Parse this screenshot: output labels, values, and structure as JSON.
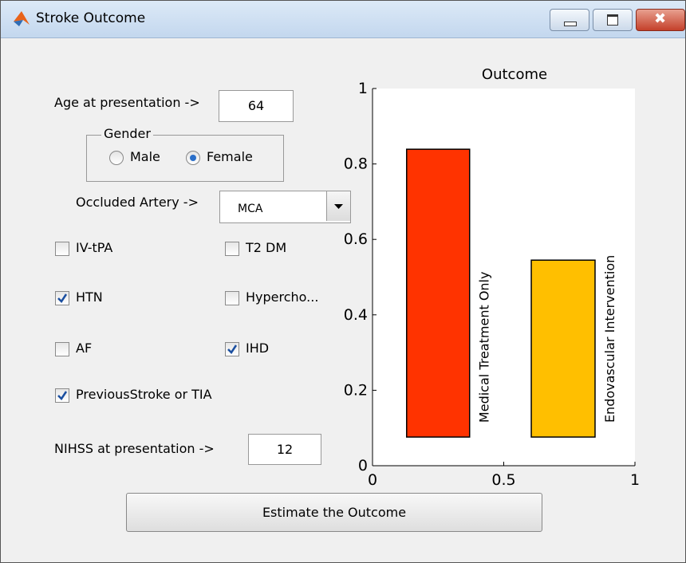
{
  "window": {
    "title": "Stroke Outcome"
  },
  "form": {
    "age": {
      "label": "Age at presentation ->",
      "value": "64"
    },
    "gender": {
      "legend": "Gender",
      "options": [
        {
          "label": "Male",
          "checked": false
        },
        {
          "label": "Female",
          "checked": true
        }
      ]
    },
    "artery": {
      "label": "Occluded Artery ->",
      "value": "MCA"
    },
    "checkboxes": [
      {
        "label": "IV-tPA",
        "checked": false
      },
      {
        "label": "T2 DM",
        "checked": false
      },
      {
        "label": "HTN",
        "checked": true
      },
      {
        "label": "Hypercho...",
        "checked": false
      },
      {
        "label": "AF",
        "checked": false
      },
      {
        "label": "IHD",
        "checked": true
      },
      {
        "label": "PreviousStroke or TIA",
        "checked": true
      }
    ],
    "nihss": {
      "label": "NIHSS at presentation ->",
      "value": "12"
    },
    "button": "Estimate the Outcome"
  },
  "chart_data": {
    "type": "floating-bar",
    "title": "Outcome",
    "xlim": [
      0,
      1
    ],
    "ylim": [
      0,
      1
    ],
    "xticks": [
      0,
      0.5,
      1
    ],
    "yticks": [
      0,
      0.2,
      0.4,
      0.6,
      0.8,
      1
    ],
    "bars": [
      {
        "label": "Medical Treatment Only",
        "color": "#ff3300",
        "x": [
          0.13,
          0.37
        ],
        "bottom": 0.076,
        "top": 0.839
      },
      {
        "label": "Endovascular Intervention",
        "color": "#ffbf00",
        "x": [
          0.605,
          0.848
        ],
        "bottom": 0.076,
        "top": 0.545
      }
    ]
  }
}
